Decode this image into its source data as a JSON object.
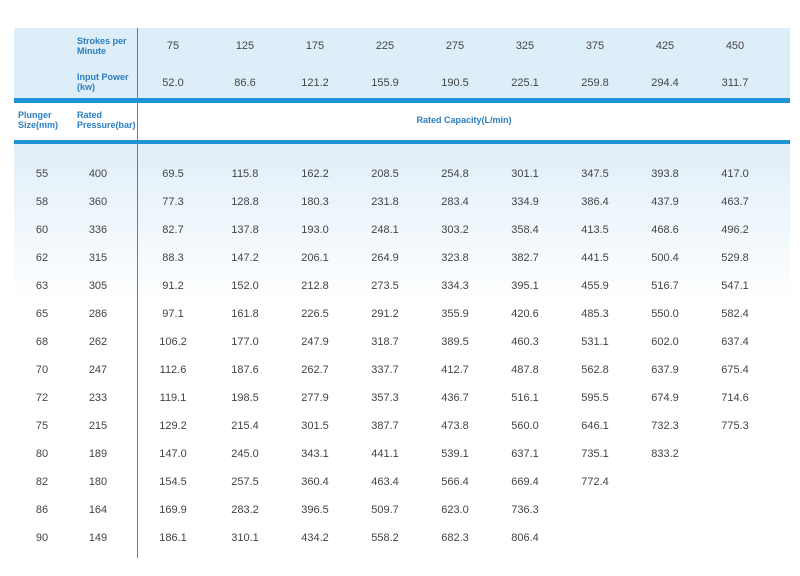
{
  "header": {
    "strokes_label": "Strokes per Minute",
    "power_label": "Input Power (kw)",
    "plunger_label": "Plunger Size(mm)",
    "pressure_label": "Rated Pressure(bar)",
    "capacity_label": "Rated Capacity(L/min)",
    "strokes": [
      "75",
      "125",
      "175",
      "225",
      "275",
      "325",
      "375",
      "425",
      "450"
    ],
    "power": [
      "52.0",
      "86.6",
      "121.2",
      "155.9",
      "190.5",
      "225.1",
      "259.8",
      "294.4",
      "311.7"
    ]
  },
  "rows": [
    [
      "55",
      "400",
      "69.5",
      "115.8",
      "162.2",
      "208.5",
      "254.8",
      "301.1",
      "347.5",
      "393.8",
      "417.0"
    ],
    [
      "58",
      "360",
      "77.3",
      "128.8",
      "180.3",
      "231.8",
      "283.4",
      "334.9",
      "386.4",
      "437.9",
      "463.7"
    ],
    [
      "60",
      "336",
      "82.7",
      "137.8",
      "193.0",
      "248.1",
      "303.2",
      "358.4",
      "413.5",
      "468.6",
      "496.2"
    ],
    [
      "62",
      "315",
      "88.3",
      "147.2",
      "206.1",
      "264.9",
      "323.8",
      "382.7",
      "441.5",
      "500.4",
      "529.8"
    ],
    [
      "63",
      "305",
      "91.2",
      "152.0",
      "212.8",
      "273.5",
      "334.3",
      "395.1",
      "455.9",
      "516.7",
      "547.1"
    ],
    [
      "65",
      "286",
      "97.1",
      "161.8",
      "226.5",
      "291.2",
      "355.9",
      "420.6",
      "485.3",
      "550.0",
      "582.4"
    ],
    [
      "68",
      "262",
      "106.2",
      "177.0",
      "247.9",
      "318.7",
      "389.5",
      "460.3",
      "531.1",
      "602.0",
      "637.4"
    ],
    [
      "70",
      "247",
      "112.6",
      "187.6",
      "262.7",
      "337.7",
      "412.7",
      "487.8",
      "562.8",
      "637.9",
      "675.4"
    ],
    [
      "72",
      "233",
      "119.1",
      "198.5",
      "277.9",
      "357.3",
      "436.7",
      "516.1",
      "595.5",
      "674.9",
      "714.6"
    ],
    [
      "75",
      "215",
      "129.2",
      "215.4",
      "301.5",
      "387.7",
      "473.8",
      "560.0",
      "646.1",
      "732.3",
      "775.3"
    ],
    [
      "80",
      "189",
      "147.0",
      "245.0",
      "343.1",
      "441.1",
      "539.1",
      "637.1",
      "735.1",
      "833.2",
      ""
    ],
    [
      "82",
      "180",
      "154.5",
      "257.5",
      "360.4",
      "463.4",
      "566.4",
      "669.4",
      "772.4",
      "",
      ""
    ],
    [
      "86",
      "164",
      "169.9",
      "283.2",
      "396.5",
      "509.7",
      "623.0",
      "736.3",
      "",
      "",
      ""
    ],
    [
      "90",
      "149",
      "186.1",
      "310.1",
      "434.2",
      "558.2",
      "682.3",
      "806.4",
      "",
      "",
      ""
    ]
  ]
}
